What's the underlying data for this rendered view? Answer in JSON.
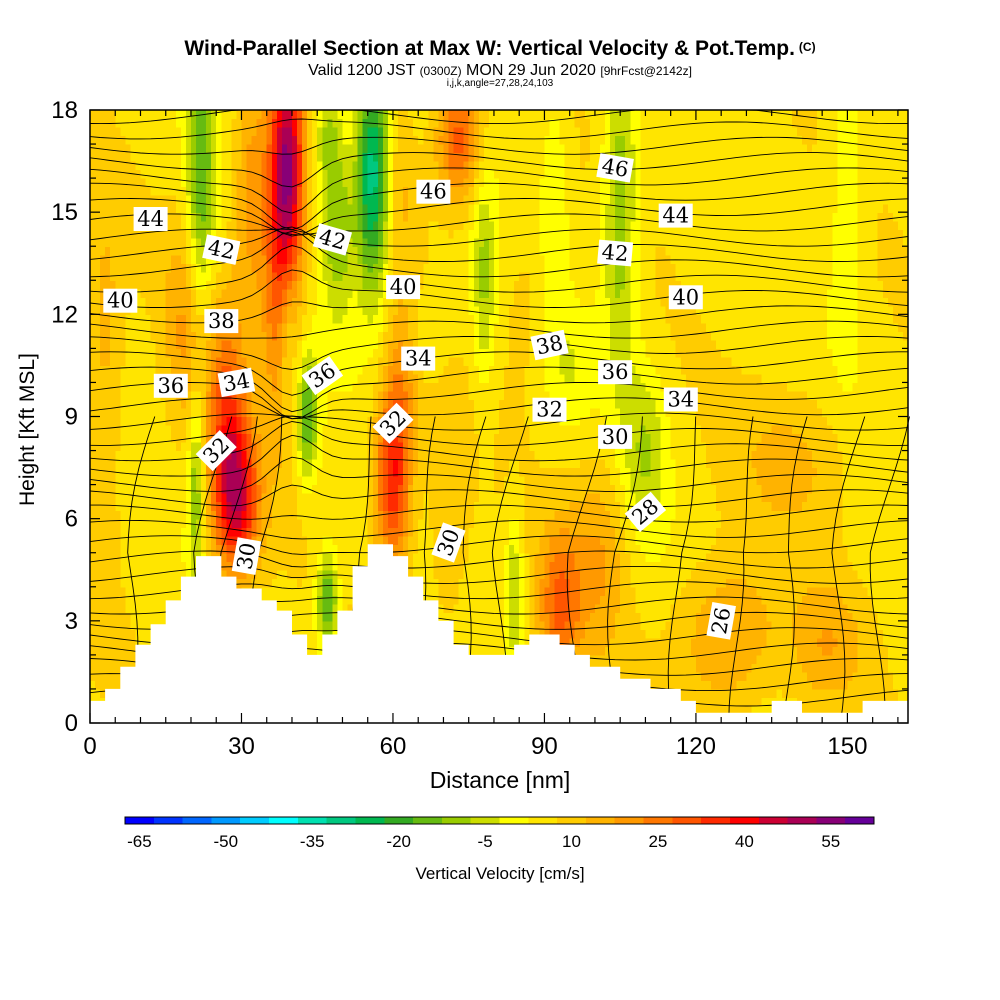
{
  "header": {
    "title": "Wind-Parallel Section at Max W: Vertical Velocity & Pot.Temp.",
    "copyright": "(C)",
    "valid_prefix": "Valid 1200 JST",
    "valid_utc": "(0300Z)",
    "valid_date": "MON 29 Jun 2020",
    "forecast": "[9hrFcst@2142z]",
    "indices": "i,j,k,angle=27,28,24,103"
  },
  "chart_data": {
    "type": "heatmap",
    "xlabel": "Distance [nm]",
    "ylabel": "Height [Kft MSL]",
    "xlim": [
      0,
      162
    ],
    "ylim": [
      0,
      18
    ],
    "x_ticks": [
      0,
      30,
      60,
      90,
      120,
      150
    ],
    "y_ticks": [
      0,
      3,
      6,
      9,
      12,
      15,
      18
    ],
    "colorbar": {
      "label": "Vertical Velocity [cm/s]",
      "tick_labels": [
        -65,
        -50,
        -35,
        -20,
        -5,
        10,
        25,
        40,
        55
      ],
      "levels": [
        -65,
        -60,
        -55,
        -50,
        -45,
        -40,
        -35,
        -30,
        -25,
        -20,
        -15,
        -10,
        -5,
        0,
        5,
        10,
        15,
        20,
        25,
        30,
        35,
        40,
        45,
        50,
        55
      ],
      "colors": [
        "#0000ff",
        "#0033ff",
        "#0066ff",
        "#0099ff",
        "#00ccff",
        "#00ffff",
        "#00e0b0",
        "#00c880",
        "#00b850",
        "#33aa22",
        "#66bb11",
        "#99cc00",
        "#ccdd00",
        "#ffff00",
        "#ffe500",
        "#ffcc00",
        "#ffb300",
        "#ff9900",
        "#ff7700",
        "#ff5500",
        "#ff2a00",
        "#ff0000",
        "#cc0033",
        "#aa0055",
        "#880077",
        "#660099"
      ]
    },
    "terrain": [
      [
        0,
        0.65
      ],
      [
        3,
        0.65
      ],
      [
        3,
        1.0
      ],
      [
        6,
        1.0
      ],
      [
        6,
        1.65
      ],
      [
        9,
        1.65
      ],
      [
        9,
        2.3
      ],
      [
        12,
        2.3
      ],
      [
        12,
        2.9
      ],
      [
        15,
        2.9
      ],
      [
        15,
        3.6
      ],
      [
        18,
        3.6
      ],
      [
        18,
        4.3
      ],
      [
        21,
        4.3
      ],
      [
        21,
        4.9
      ],
      [
        26,
        4.9
      ],
      [
        26,
        4.3
      ],
      [
        29,
        4.3
      ],
      [
        29,
        3.95
      ],
      [
        34,
        3.95
      ],
      [
        34,
        3.6
      ],
      [
        37,
        3.6
      ],
      [
        37,
        3.3
      ],
      [
        40,
        3.3
      ],
      [
        40,
        2.6
      ],
      [
        43,
        2.6
      ],
      [
        43,
        2.0
      ],
      [
        46,
        2.0
      ],
      [
        46,
        2.6
      ],
      [
        49,
        2.6
      ],
      [
        49,
        3.3
      ],
      [
        52,
        3.3
      ],
      [
        52,
        4.6
      ],
      [
        55,
        4.6
      ],
      [
        55,
        5.25
      ],
      [
        60,
        5.25
      ],
      [
        60,
        4.9
      ],
      [
        63,
        4.9
      ],
      [
        63,
        4.3
      ],
      [
        66,
        4.3
      ],
      [
        66,
        3.6
      ],
      [
        69,
        3.6
      ],
      [
        69,
        3.0
      ],
      [
        72,
        3.0
      ],
      [
        72,
        2.3
      ],
      [
        75,
        2.3
      ],
      [
        75,
        2.0
      ],
      [
        84,
        2.0
      ],
      [
        84,
        2.3
      ],
      [
        87,
        2.3
      ],
      [
        87,
        2.6
      ],
      [
        93,
        2.6
      ],
      [
        93,
        2.3
      ],
      [
        96,
        2.3
      ],
      [
        96,
        2.0
      ],
      [
        99,
        2.0
      ],
      [
        99,
        1.65
      ],
      [
        105,
        1.65
      ],
      [
        105,
        1.3
      ],
      [
        111,
        1.3
      ],
      [
        111,
        1.0
      ],
      [
        117,
        1.0
      ],
      [
        117,
        0.65
      ],
      [
        120,
        0.65
      ],
      [
        120,
        0.3
      ],
      [
        135,
        0.3
      ],
      [
        135,
        0.65
      ],
      [
        141,
        0.65
      ],
      [
        141,
        0.3
      ],
      [
        153,
        0.3
      ],
      [
        153,
        0.65
      ],
      [
        162,
        0.65
      ],
      [
        162,
        0
      ]
    ],
    "w_blobs": [
      {
        "x": 39,
        "y": 16.5,
        "sx": 2.4,
        "sy": 2.2,
        "w": 42
      },
      {
        "x": 38,
        "y": 12.5,
        "sx": 2.5,
        "sy": 2.6,
        "w": 26
      },
      {
        "x": 29,
        "y": 6.6,
        "sx": 3.2,
        "sy": 1.6,
        "w": 38
      },
      {
        "x": 27,
        "y": 9.5,
        "sx": 2.6,
        "sy": 2.2,
        "w": 20
      },
      {
        "x": 60,
        "y": 7.3,
        "sx": 2.6,
        "sy": 1.9,
        "w": 34
      },
      {
        "x": 62,
        "y": 10.5,
        "sx": 2.2,
        "sy": 1.6,
        "w": 10
      },
      {
        "x": 73,
        "y": 17.2,
        "sx": 3.2,
        "sy": 1.3,
        "w": 26
      },
      {
        "x": 3,
        "y": 13,
        "sx": 2.5,
        "sy": 5,
        "w": 12
      },
      {
        "x": 19,
        "y": 11.5,
        "sx": 3.0,
        "sy": 2.2,
        "w": 12
      },
      {
        "x": 93,
        "y": 3.5,
        "sx": 3.0,
        "sy": 1.5,
        "w": 22
      },
      {
        "x": 71,
        "y": 6,
        "sx": 3.0,
        "sy": 2.5,
        "w": 8
      },
      {
        "x": 101,
        "y": 5,
        "sx": 4,
        "sy": 2,
        "w": 12
      },
      {
        "x": 126,
        "y": 2.5,
        "sx": 7,
        "sy": 1.6,
        "w": 14
      },
      {
        "x": 146,
        "y": 2.3,
        "sx": 5,
        "sy": 1.3,
        "w": 10
      },
      {
        "x": 140,
        "y": 7.8,
        "sx": 8,
        "sy": 1.5,
        "w": 8
      },
      {
        "x": 86,
        "y": 12.5,
        "sx": 3,
        "sy": 2,
        "w": 5
      },
      {
        "x": 32,
        "y": 15.5,
        "sx": 2.5,
        "sy": 2.5,
        "w": 16
      },
      {
        "x": 61,
        "y": 16,
        "sx": 2.5,
        "sy": 2,
        "w": 8
      },
      {
        "x": 47,
        "y": 3.6,
        "sx": 1.5,
        "sy": 1.0,
        "w": -26
      },
      {
        "x": 56,
        "y": 16,
        "sx": 2.4,
        "sy": 2.4,
        "w": -38
      },
      {
        "x": 22,
        "y": 16,
        "sx": 2.0,
        "sy": 3.0,
        "w": -22
      },
      {
        "x": 21,
        "y": 7,
        "sx": 1.1,
        "sy": 2.0,
        "w": -18
      },
      {
        "x": 43,
        "y": 9,
        "sx": 1.5,
        "sy": 1.3,
        "w": -24
      },
      {
        "x": 39,
        "y": 11.5,
        "sx": 1.4,
        "sy": 1.6,
        "w": -16
      },
      {
        "x": 49,
        "y": 14.5,
        "sx": 2.2,
        "sy": 1.8,
        "w": -18
      },
      {
        "x": 47,
        "y": 17.3,
        "sx": 2.0,
        "sy": 1.2,
        "w": -14
      },
      {
        "x": 105,
        "y": 15,
        "sx": 2.4,
        "sy": 3.5,
        "w": -18
      },
      {
        "x": 110,
        "y": 8,
        "sx": 3,
        "sy": 1.8,
        "w": -12
      },
      {
        "x": 78,
        "y": 13,
        "sx": 1.6,
        "sy": 2.3,
        "w": -14
      },
      {
        "x": 92,
        "y": 15.5,
        "sx": 2,
        "sy": 2.5,
        "w": -8
      },
      {
        "x": 3,
        "y": 16.5,
        "sx": 2.5,
        "sy": 3,
        "w": -8
      },
      {
        "x": 84,
        "y": 4,
        "sx": 1.2,
        "sy": 1.5,
        "w": -14
      },
      {
        "x": 150,
        "y": 15.5,
        "sx": 2.5,
        "sy": 3.5,
        "w": -8
      },
      {
        "x": 95,
        "y": 10.5,
        "sx": 3.5,
        "sy": 1.2,
        "w": -6
      },
      {
        "x": 67,
        "y": 11.5,
        "sx": 4,
        "sy": 1,
        "w": -5
      }
    ],
    "contour_labels": [
      {
        "text": "44",
        "x": 12,
        "y": 14.8,
        "angle": 0
      },
      {
        "text": "42",
        "x": 26,
        "y": 13.9,
        "angle": 12
      },
      {
        "text": "42",
        "x": 48,
        "y": 14.2,
        "angle": 16
      },
      {
        "text": "46",
        "x": 68,
        "y": 15.6,
        "angle": 0
      },
      {
        "text": "46",
        "x": 104,
        "y": 16.3,
        "angle": 10
      },
      {
        "text": "44",
        "x": 116,
        "y": 14.9,
        "angle": 0
      },
      {
        "text": "42",
        "x": 104,
        "y": 13.8,
        "angle": 5
      },
      {
        "text": "40",
        "x": 6,
        "y": 12.4,
        "angle": 0
      },
      {
        "text": "40",
        "x": 62,
        "y": 12.8,
        "angle": 0
      },
      {
        "text": "40",
        "x": 118,
        "y": 12.5,
        "angle": 0
      },
      {
        "text": "38",
        "x": 26,
        "y": 11.8,
        "angle": 0
      },
      {
        "text": "38",
        "x": 91,
        "y": 11.1,
        "angle": -12
      },
      {
        "text": "36",
        "x": 16,
        "y": 9.9,
        "angle": 0
      },
      {
        "text": "34",
        "x": 29,
        "y": 10.0,
        "angle": -10
      },
      {
        "text": "36",
        "x": 46,
        "y": 10.2,
        "angle": -35
      },
      {
        "text": "34",
        "x": 65,
        "y": 10.7,
        "angle": 0
      },
      {
        "text": "36",
        "x": 104,
        "y": 10.3,
        "angle": 0
      },
      {
        "text": "34",
        "x": 117,
        "y": 9.5,
        "angle": 0
      },
      {
        "text": "32",
        "x": 25,
        "y": 8.0,
        "angle": -45
      },
      {
        "text": "32",
        "x": 60,
        "y": 8.8,
        "angle": -45
      },
      {
        "text": "32",
        "x": 91,
        "y": 9.2,
        "angle": 0
      },
      {
        "text": "30",
        "x": 104,
        "y": 8.4,
        "angle": 0
      },
      {
        "text": "28",
        "x": 110,
        "y": 6.2,
        "angle": -40
      },
      {
        "text": "30",
        "x": 31,
        "y": 4.9,
        "angle": -80
      },
      {
        "text": "30",
        "x": 71,
        "y": 5.3,
        "angle": -70
      },
      {
        "text": "26",
        "x": 125,
        "y": 3.0,
        "angle": -80
      }
    ]
  }
}
